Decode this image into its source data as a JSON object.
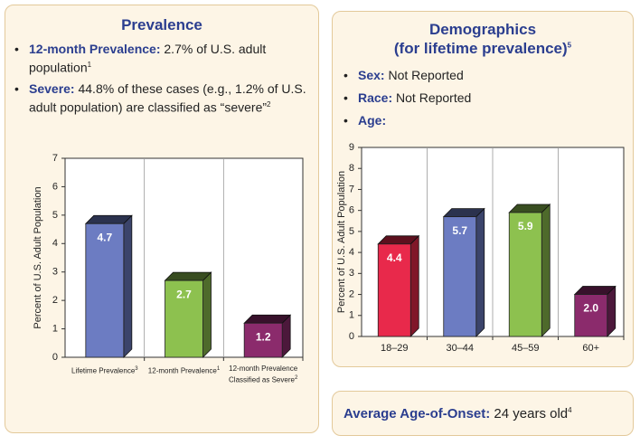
{
  "prevalence": {
    "title": "Prevalence",
    "bullets": [
      {
        "label": "12-month Prevalence:",
        "text": "2.7% of U.S. adult population",
        "sup": "1"
      },
      {
        "label": "Severe:",
        "text": "44.8% of these cases (e.g., 1.2% of U.S. adult population) are classified as “severe”",
        "sup": "2"
      }
    ]
  },
  "demographics": {
    "title": "Demographics",
    "subtitle": "(for lifetime prevalence)",
    "sup": "5",
    "bullets": [
      {
        "label": "Sex:",
        "text": "Not Reported"
      },
      {
        "label": "Race:",
        "text": "Not Reported"
      },
      {
        "label": "Age:"
      }
    ]
  },
  "onset": {
    "label": "Average Age-of-Onset:",
    "text": "24 years old",
    "sup": "4"
  },
  "chart_data": [
    {
      "type": "bar",
      "ylabel": "Percent of U.S. Adult Population",
      "categories": [
        "Lifetime Prevalence",
        "12-month Prevalence",
        "12-month Prevalence Classified as Severe"
      ],
      "category_notes": [
        "3",
        "1",
        "2"
      ],
      "values": [
        4.7,
        2.7,
        1.2
      ],
      "colors": [
        "#6c7cc2",
        "#8dc14f",
        "#8b2b6c"
      ],
      "ylim": [
        0,
        7
      ],
      "yticks": [
        0,
        1,
        2,
        3,
        4,
        5,
        6,
        7
      ]
    },
    {
      "type": "bar",
      "ylabel": "Percent of U.S. Adult Population",
      "categories": [
        "18–29",
        "30–44",
        "45–59",
        "60+"
      ],
      "values": [
        4.4,
        5.7,
        5.9,
        2.0
      ],
      "value_labels": [
        "4.4",
        "5.7",
        "5.9",
        "2.0"
      ],
      "colors": [
        "#e8294b",
        "#6c7cc2",
        "#8dc14f",
        "#8b2b6c"
      ],
      "ylim": [
        0,
        9
      ],
      "yticks": [
        0,
        1,
        2,
        3,
        4,
        5,
        6,
        7,
        8,
        9
      ]
    }
  ]
}
